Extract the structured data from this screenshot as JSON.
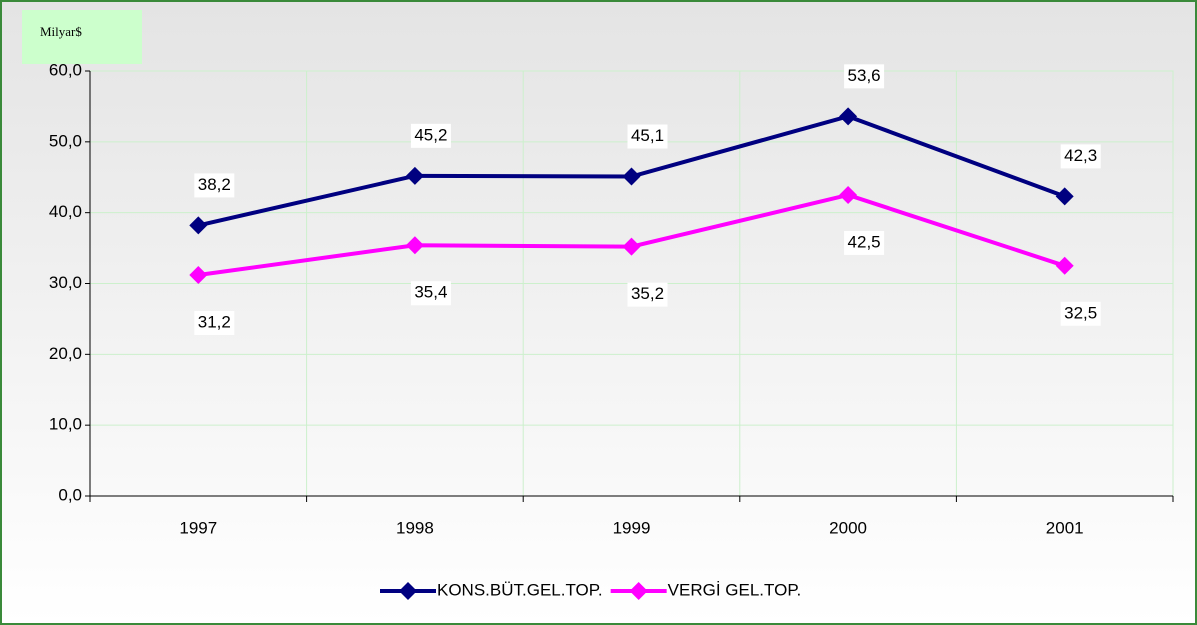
{
  "chart_data": {
    "type": "line",
    "y_axis_label": "Milyar$",
    "categories": [
      "1997",
      "1998",
      "1999",
      "2000",
      "2001"
    ],
    "series": [
      {
        "name": "KONS.BÜT.GEL.TOP.",
        "color": "#000080",
        "values": [
          38.2,
          45.2,
          45.1,
          53.6,
          42.3
        ],
        "value_labels": [
          "38,2",
          "45,2",
          "45,1",
          "53,6",
          "42,3"
        ]
      },
      {
        "name": "VERGİ GEL.TOP.",
        "color": "#ff00ff",
        "values": [
          31.2,
          35.4,
          35.2,
          42.5,
          32.5
        ],
        "value_labels": [
          "31,2",
          "35,4",
          "35,2",
          "42,5",
          "32,5"
        ]
      }
    ],
    "ylim": [
      0,
      60
    ],
    "yticks": [
      {
        "value": 0,
        "label": "0,0"
      },
      {
        "value": 10,
        "label": "10,0"
      },
      {
        "value": 20,
        "label": "20,0"
      },
      {
        "value": 30,
        "label": "30,0"
      },
      {
        "value": 40,
        "label": "40,0"
      },
      {
        "value": 50,
        "label": "50,0"
      },
      {
        "value": 60,
        "label": "60,0"
      }
    ],
    "grid": true,
    "legend": "bottom"
  }
}
